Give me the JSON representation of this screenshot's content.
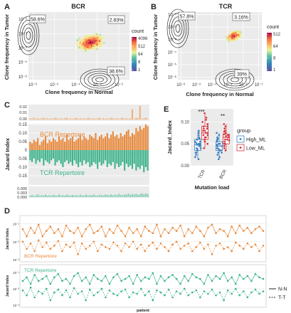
{
  "panels": {
    "A": {
      "letter": "A",
      "title": "BCR",
      "ylabel": "Clone frequency in Tumor",
      "xlabel": "Clone frequency in Normal",
      "ticks": [
        "10⁻⁶",
        "10⁻⁵",
        "10⁻⁴",
        "10⁻³",
        "10⁻²"
      ],
      "pct_top_left": "58.6%",
      "pct_top_right": "2.83%",
      "pct_bottom": "38.6%",
      "legend_title": "count",
      "legend_ticks": [
        "4096",
        "512",
        "64",
        "8",
        "1"
      ]
    },
    "B": {
      "letter": "B",
      "title": "TCR",
      "ylabel": "Clone frequency in Tumor",
      "xlabel": "Clone frequency in Normal",
      "yticks": [
        "10⁻⁶",
        "10⁻⁵",
        "10⁻⁴",
        "10⁻³",
        "10⁻²",
        "10⁻¹"
      ],
      "xticks": [
        "10⁻⁶",
        "10⁻⁵",
        "10⁻⁴",
        "10⁻³",
        "10⁻²",
        "10⁻¹"
      ],
      "pct_top_left": "57.8%",
      "pct_top_right": "3.16%",
      "pct_bottom": "39%",
      "legend_title": "count",
      "legend_ticks": [
        "512",
        "64",
        "8",
        "1"
      ]
    },
    "C": {
      "letter": "C",
      "ylabel": "Jacard Index",
      "bcr_label": "BCR Repertoire",
      "tcr_label": "TCR Repertoire",
      "top_ticks": [
        "0.02",
        "0.01",
        "0.00"
      ],
      "mid_ticks": [
        "0.20",
        "0.15",
        "0.10",
        "0.05",
        "0",
        "0.05",
        "0.10",
        "0.15"
      ],
      "bot_ticks": [
        "0.006",
        "0.003",
        "0.000"
      ]
    },
    "D": {
      "letter": "D",
      "ylabel": "Jacard Index",
      "xlabel": "patient",
      "bcr_label": "BCR Repertoire",
      "tcr_label": "TCR Repertoire",
      "ticks": [
        "10⁻¹",
        "10⁻²",
        "10⁻³"
      ],
      "legend_nn": "N-N",
      "legend_tt": "T-T"
    },
    "E": {
      "letter": "E",
      "ylabel": "Jacard_Index",
      "xlabel": "Mutation load",
      "yticks": [
        "0.10",
        "0.05",
        "0.00"
      ],
      "categories": [
        "TCR",
        "BCR"
      ],
      "sig_tcr": "***",
      "sig_bcr": "**",
      "legend_title": "group",
      "legend_high": "High_ML",
      "legend_low": "Low_ML"
    }
  },
  "colors": {
    "bcr": "#e8883a",
    "tcr": "#3db38b",
    "high_ml": "#3a7fc1",
    "low_ml": "#d6343c"
  },
  "chart_data": [
    {
      "type": "heatmap",
      "panel": "A",
      "title": "BCR",
      "xlabel": "Clone frequency in Normal",
      "ylabel": "Clone frequency in Tumor",
      "log_scale": true,
      "xlim": [
        1e-06,
        0.01
      ],
      "ylim": [
        1e-06,
        0.01
      ],
      "quadrants": {
        "tumor_only": "58.6%",
        "shared": "2.83%",
        "normal_only": "38.6%"
      },
      "count_scale": [
        1,
        8,
        64,
        512,
        4096
      ]
    },
    {
      "type": "heatmap",
      "panel": "B",
      "title": "TCR",
      "xlabel": "Clone frequency in Normal",
      "ylabel": "Clone frequency in Tumor",
      "log_scale": true,
      "xlim": [
        1e-06,
        0.1
      ],
      "ylim": [
        1e-06,
        0.1
      ],
      "quadrants": {
        "tumor_only": "57.8%",
        "shared": "3.16%",
        "normal_only": "39%"
      },
      "count_scale": [
        1,
        8,
        64,
        512
      ]
    },
    {
      "type": "bar",
      "panel": "C",
      "ylabel": "Jacard Index",
      "series": [
        {
          "name": "BCR Repertoire",
          "values": [
            0.05,
            0.04,
            0.06,
            0.05,
            0.07,
            0.03,
            0.05,
            0.06,
            0.08,
            0.04,
            0.06,
            0.05,
            0.07,
            0.06,
            0.05,
            0.08,
            0.06,
            0.07,
            0.05,
            0.09,
            0.06,
            0.07,
            0.08,
            0.05,
            0.06,
            0.07,
            0.09,
            0.06,
            0.08,
            0.07,
            0.06,
            0.09,
            0.08,
            0.07,
            0.1,
            0.06,
            0.08,
            0.09,
            0.07,
            0.08,
            0.1,
            0.07,
            0.09,
            0.11,
            0.08,
            0.09,
            0.07,
            0.1,
            0.08,
            0.09,
            0.11,
            0.12,
            0.08,
            0.1,
            0.09,
            0.13,
            0.11,
            0.14,
            0.12,
            0.13,
            0.15,
            0.14
          ]
        },
        {
          "name": "TCR Repertoire",
          "values": [
            0.06,
            0.07,
            0.05,
            0.08,
            0.06,
            0.07,
            0.05,
            0.09,
            0.06,
            0.07,
            0.08,
            0.06,
            0.05,
            0.09,
            0.07,
            0.06,
            0.08,
            0.1,
            0.07,
            0.06,
            0.08,
            0.07,
            0.09,
            0.06,
            0.08,
            0.1,
            0.07,
            0.09,
            0.06,
            0.08,
            0.07,
            0.1,
            0.09,
            0.07,
            0.08,
            0.11,
            0.07,
            0.09,
            0.08,
            0.06,
            0.1,
            0.08,
            0.09,
            0.07,
            0.11,
            0.08,
            0.1,
            0.09,
            0.07,
            0.12,
            0.08,
            0.1,
            0.09,
            0.11,
            0.08,
            0.12,
            0.1,
            0.11,
            0.09,
            0.13,
            0.1,
            0.12
          ]
        },
        {
          "name": "BCR top",
          "values": [
            0.002,
            0.001,
            0.003,
            0.001,
            0.002,
            0.001,
            0.002,
            0.003,
            0.001,
            0.002,
            0.001,
            0.002,
            0.001,
            0.003,
            0.002,
            0.001,
            0.002,
            0.001,
            0.002,
            0.003,
            0.001,
            0.002,
            0.001,
            0.002,
            0.003,
            0.001,
            0.002,
            0.001,
            0.002,
            0.001,
            0.003,
            0.002,
            0.001,
            0.002,
            0.001,
            0.002,
            0.003,
            0.001,
            0.002,
            0.001,
            0.002,
            0.001,
            0.003,
            0.002,
            0.001,
            0.002,
            0.001,
            0.002,
            0.003,
            0.001,
            0.002,
            0.001,
            0.002,
            0.018,
            0.001,
            0.003,
            0.002,
            0.024,
            0.001,
            0.002,
            0.003,
            0.001
          ]
        },
        {
          "name": "TCR bottom",
          "values": [
            0.001,
            0.0015,
            0.0008,
            0.0012,
            0.002,
            0.0009,
            0.0014,
            0.0011,
            0.0018,
            0.001,
            0.0013,
            0.0009,
            0.0016,
            0.0012,
            0.001,
            0.0019,
            0.0011,
            0.0014,
            0.0009,
            0.0017,
            0.0012,
            0.001,
            0.0015,
            0.0011,
            0.0013,
            0.0009,
            0.0016,
            0.0012,
            0.001,
            0.0018,
            0.0011,
            0.0014,
            0.0013,
            0.0019,
            0.0012,
            0.001,
            0.0016,
            0.0014,
            0.0011,
            0.0018,
            0.0015,
            0.0013,
            0.002,
            0.0012,
            0.0017,
            0.0014,
            0.0022,
            0.0016,
            0.0013,
            0.0019,
            0.0017,
            0.0025,
            0.0015,
            0.0021,
            0.0018,
            0.0023,
            0.0016,
            0.002,
            0.0027,
            0.0019,
            0.0024,
            0.0022
          ]
        }
      ]
    },
    {
      "type": "line",
      "panel": "D",
      "ylabel": "Jacard Index",
      "xlabel": "patient",
      "log_scale": true,
      "ylim": [
        0.001,
        0.2
      ],
      "series": [
        {
          "name": "BCR N-N",
          "values": [
            0.05,
            0.02,
            0.06,
            0.03,
            0.09,
            0.02,
            0.04,
            0.07,
            0.03,
            0.05,
            0.02,
            0.08,
            0.04,
            0.03,
            0.06,
            0.02,
            0.05,
            0.09,
            0.03,
            0.04,
            0.07,
            0.02,
            0.05,
            0.03,
            0.08,
            0.04,
            0.02,
            0.06,
            0.03,
            0.05,
            0.02,
            0.07,
            0.04,
            0.03,
            0.09,
            0.02,
            0.05,
            0.03,
            0.06,
            0.04,
            0.08,
            0.02,
            0.05,
            0.03,
            0.07,
            0.04,
            0.02,
            0.06,
            0.09,
            0.03,
            0.05,
            0.04,
            0.02,
            0.07,
            0.03,
            0.08,
            0.04,
            0.06,
            0.03,
            0.05,
            0.07,
            0.04
          ]
        },
        {
          "name": "BCR T-T",
          "values": [
            0.01,
            0.004,
            0.008,
            0.003,
            0.012,
            0.005,
            0.009,
            0.004,
            0.006,
            0.011,
            0.003,
            0.007,
            0.005,
            0.009,
            0.002,
            0.008,
            0.004,
            0.006,
            0.01,
            0.003,
            0.007,
            0.005,
            0.004,
            0.009,
            0.006,
            0.003,
            0.008,
            0.005,
            0.01,
            0.004,
            0.007,
            0.003,
            0.006,
            0.009,
            0.004,
            0.008,
            0.005,
            0.003,
            0.007,
            0.01,
            0.004,
            0.006,
            0.008,
            0.003,
            0.005,
            0.009,
            0.004,
            0.007,
            0.002,
            0.006,
            0.008,
            0.004,
            0.005,
            0.003,
            0.009,
            0.006,
            0.004,
            0.008,
            0.005,
            0.007,
            0.003,
            0.006
          ]
        },
        {
          "name": "TCR N-N",
          "values": [
            0.03,
            0.05,
            0.02,
            0.07,
            0.03,
            0.04,
            0.06,
            0.02,
            0.05,
            0.08,
            0.03,
            0.04,
            0.02,
            0.06,
            0.09,
            0.03,
            0.05,
            0.02,
            0.07,
            0.04,
            0.03,
            0.06,
            0.02,
            0.05,
            0.08,
            0.03,
            0.04,
            0.06,
            0.02,
            0.07,
            0.03,
            0.05,
            0.04,
            0.09,
            0.02,
            0.06,
            0.03,
            0.05,
            0.07,
            0.04,
            0.02,
            0.06,
            0.03,
            0.08,
            0.05,
            0.04,
            0.02,
            0.07,
            0.03,
            0.06,
            0.04,
            0.09,
            0.03,
            0.05,
            0.02,
            0.07,
            0.04,
            0.06,
            0.03,
            0.08,
            0.05,
            0.04
          ]
        },
        {
          "name": "TCR T-T",
          "values": [
            0.008,
            0.004,
            0.012,
            0.003,
            0.007,
            0.005,
            0.01,
            0.002,
            0.006,
            0.009,
            0.004,
            0.008,
            0.003,
            0.011,
            0.005,
            0.007,
            0.002,
            0.009,
            0.004,
            0.006,
            0.01,
            0.003,
            0.008,
            0.005,
            0.004,
            0.007,
            0.009,
            0.003,
            0.006,
            0.005,
            0.01,
            0.004,
            0.007,
            0.002,
            0.008,
            0.006,
            0.004,
            0.009,
            0.003,
            0.007,
            0.005,
            0.01,
            0.004,
            0.006,
            0.008,
            0.003,
            0.007,
            0.005,
            0.009,
            0.004,
            0.006,
            0.002,
            0.008,
            0.005,
            0.01,
            0.004,
            0.007,
            0.003,
            0.006,
            0.009,
            0.005,
            0.007
          ]
        }
      ]
    },
    {
      "type": "scatter",
      "panel": "E",
      "xlabel": "Mutation load",
      "ylabel": "Jacard_Index",
      "categories": [
        "TCR",
        "BCR"
      ],
      "ylim": [
        0.0,
        0.13
      ],
      "legend": "right",
      "series": [
        {
          "name": "High_ML",
          "category": "TCR",
          "values": [
            0.02,
            0.03,
            0.035,
            0.04,
            0.04,
            0.045,
            0.05,
            0.05,
            0.055,
            0.06,
            0.06,
            0.065,
            0.07,
            0.03,
            0.025,
            0.045,
            0.075,
            0.055,
            0.038,
            0.048,
            0.052,
            0.062,
            0.08,
            0.015
          ]
        },
        {
          "name": "Low_ML",
          "category": "TCR",
          "values": [
            0.04,
            0.05,
            0.055,
            0.06,
            0.065,
            0.07,
            0.075,
            0.08,
            0.085,
            0.09,
            0.095,
            0.1,
            0.11,
            0.06,
            0.07,
            0.08,
            0.09,
            0.12,
            0.05,
            0.075,
            0.085,
            0.065,
            0.095,
            0.105
          ]
        },
        {
          "name": "High_ML",
          "category": "BCR",
          "values": [
            0.02,
            0.025,
            0.03,
            0.035,
            0.04,
            0.04,
            0.045,
            0.05,
            0.05,
            0.055,
            0.06,
            0.065,
            0.07,
            0.03,
            0.045,
            0.038,
            0.058,
            0.075,
            0.015,
            0.048,
            0.062,
            0.035
          ]
        },
        {
          "name": "Low_ML",
          "category": "BCR",
          "values": [
            0.035,
            0.04,
            0.045,
            0.05,
            0.055,
            0.06,
            0.06,
            0.065,
            0.07,
            0.07,
            0.075,
            0.08,
            0.085,
            0.09,
            0.05,
            0.065,
            0.078,
            0.058,
            0.068,
            0.095,
            0.045,
            0.072
          ]
        }
      ]
    }
  ]
}
